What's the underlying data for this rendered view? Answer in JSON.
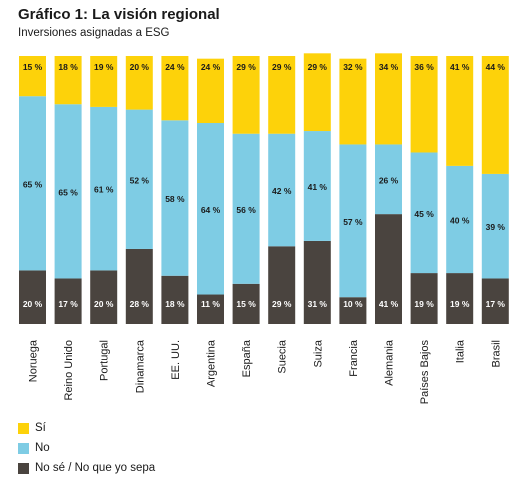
{
  "header": {
    "title": "Gráfico 1: La visión regional",
    "subtitle": "Inversiones asignadas a ESG"
  },
  "chart_data": {
    "type": "bar",
    "stacked": true,
    "percent": true,
    "categories": [
      "Noruega",
      "Reino Unido",
      "Portugal",
      "Dinamarca",
      "EE. UU.",
      "Argentina",
      "España",
      "Suecia",
      "Suiza",
      "Francia",
      "Alemania",
      "Países Bajos",
      "Italia",
      "Brasil"
    ],
    "series": [
      {
        "name": "No sé / No que yo sepa",
        "color": "#4a443f",
        "values": [
          20,
          17,
          20,
          28,
          18,
          11,
          15,
          29,
          31,
          10,
          41,
          19,
          19,
          17
        ]
      },
      {
        "name": "No",
        "color": "#7ecce4",
        "values": [
          65,
          65,
          61,
          52,
          58,
          64,
          56,
          42,
          41,
          57,
          26,
          45,
          40,
          39
        ]
      },
      {
        "name": "Sí",
        "color": "#fdd20a",
        "values": [
          15,
          18,
          19,
          20,
          24,
          24,
          29,
          29,
          29,
          32,
          34,
          36,
          41,
          44
        ]
      }
    ],
    "value_suffix": " %",
    "ylim": [
      0,
      100
    ],
    "grid": false,
    "legend": [
      {
        "label": "Sí",
        "color": "#fdd20a"
      },
      {
        "label": "No",
        "color": "#7ecce4"
      },
      {
        "label": "No sé / No que yo sepa",
        "color": "#4a443f"
      }
    ],
    "legend_position": "bottom-left"
  }
}
